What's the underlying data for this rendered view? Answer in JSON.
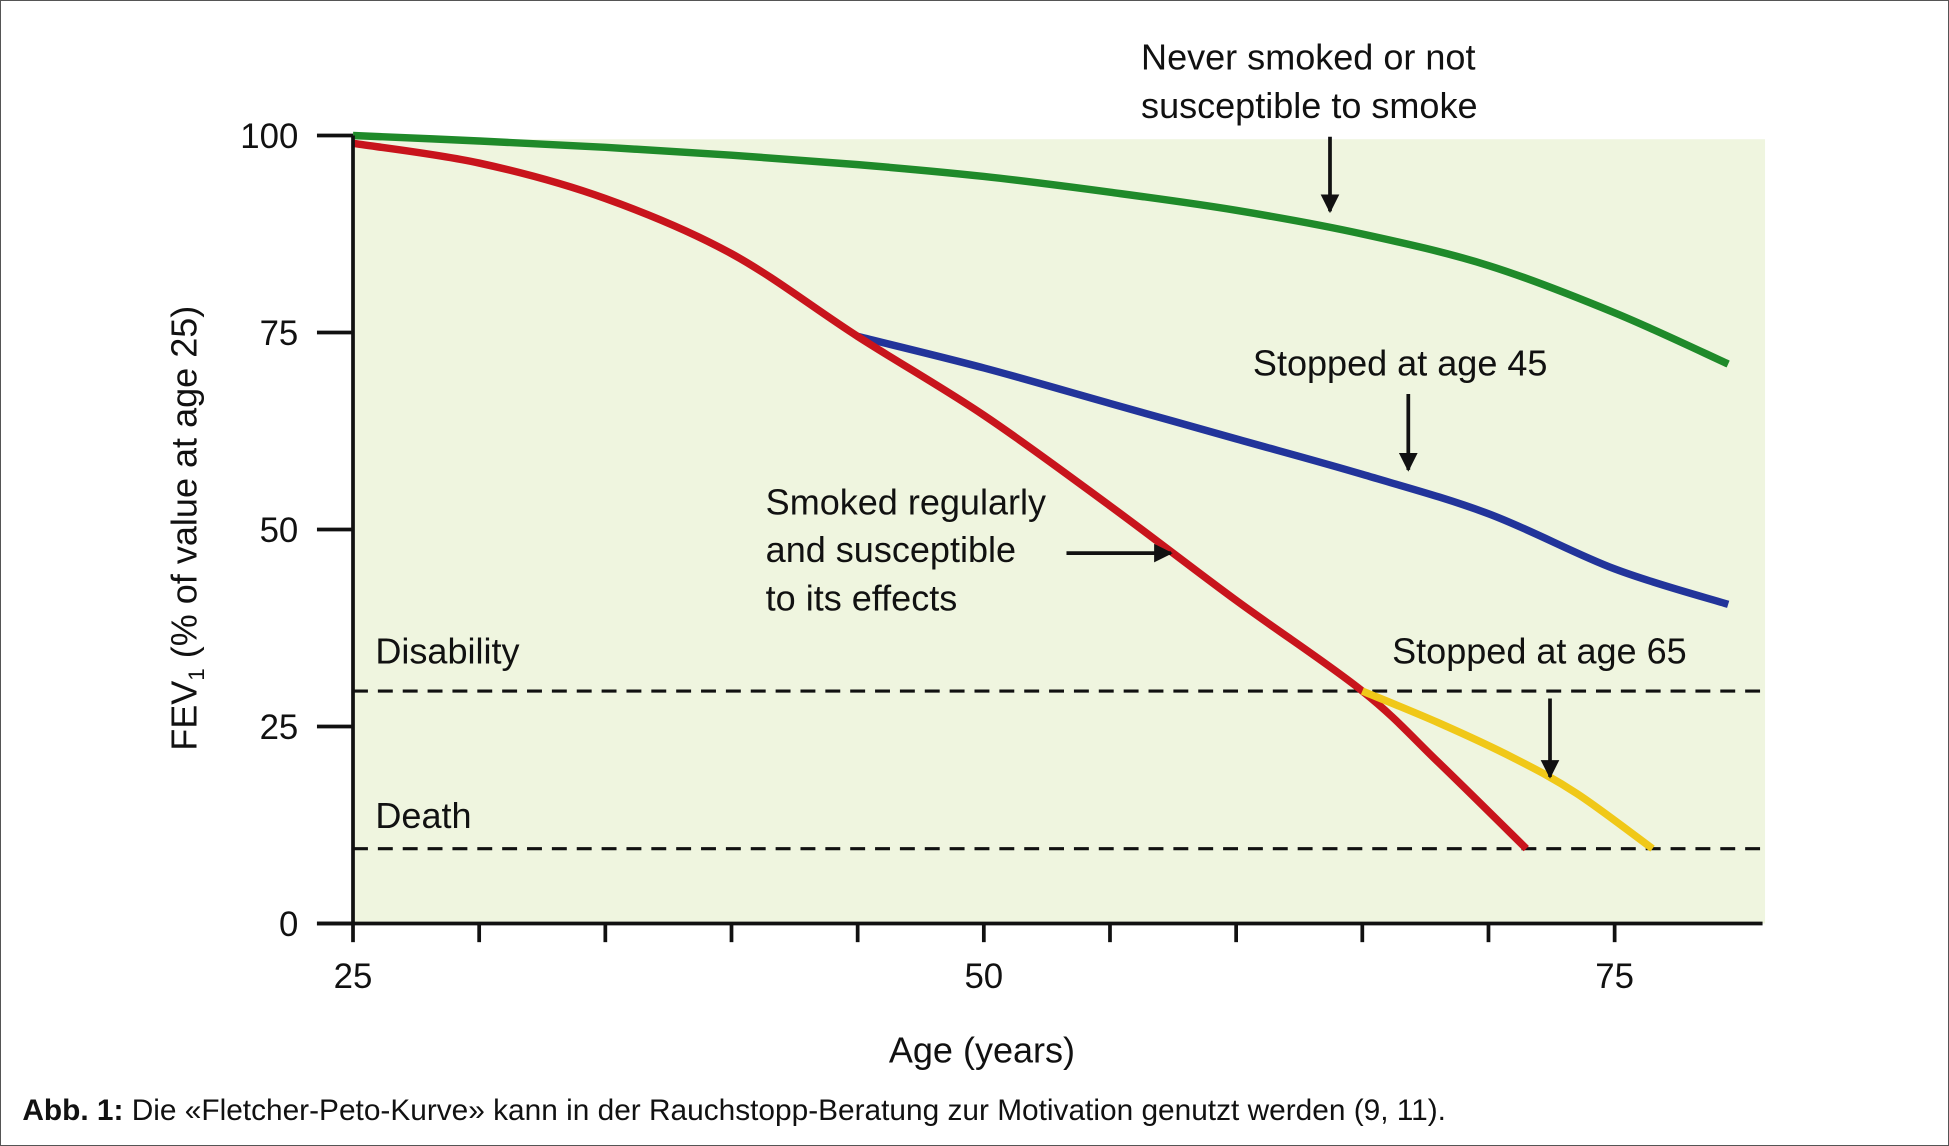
{
  "chart_data": {
    "type": "line",
    "title": "",
    "xlabel": "Age (years)",
    "ylabel_main": "FEV",
    "ylabel_sub": "1",
    "ylabel_rest": " (% of value at age 25)",
    "xlim": [
      25,
      81
    ],
    "ylim": [
      0,
      100
    ],
    "xticks": [
      25,
      30,
      35,
      40,
      45,
      50,
      55,
      60,
      65,
      70,
      75
    ],
    "xtick_labels": {
      "25": "25",
      "50": "50",
      "75": "75"
    },
    "yticks": [
      0,
      25,
      50,
      75,
      100
    ],
    "ytick_labels": [
      "0",
      "25",
      "50",
      "75",
      "100"
    ],
    "series": [
      {
        "name": "Never smoked or not susceptible to smoke",
        "color": "#1f8a2a",
        "x": [
          25,
          30,
          35,
          40,
          45,
          50,
          55,
          60,
          65,
          70,
          75,
          79.5
        ],
        "y": [
          100,
          99.3,
          98.5,
          97.5,
          96.3,
          94.8,
          92.8,
          90.5,
          87.5,
          83.5,
          77.5,
          71
        ]
      },
      {
        "name": "Smoked regularly and susceptible to its effects",
        "color": "#c8141c",
        "x": [
          25,
          30,
          35,
          40,
          45,
          50,
          55,
          60,
          65,
          68,
          71.5
        ],
        "y": [
          99,
          96.5,
          92,
          85,
          74.5,
          64.5,
          53,
          41,
          29.5,
          20.5,
          9.5
        ]
      },
      {
        "name": "Stopped at age 45",
        "color": "#22349a",
        "x": [
          45,
          50,
          55,
          60,
          65,
          70,
          75,
          79.5
        ],
        "y": [
          74.5,
          70.5,
          66,
          61.5,
          57,
          52,
          45,
          40.5
        ]
      },
      {
        "name": "Stopped at age 65",
        "color": "#f0c818",
        "x": [
          65,
          68,
          71,
          73.5,
          76.5
        ],
        "y": [
          29.5,
          25.5,
          21,
          16.5,
          9.5
        ]
      }
    ],
    "thresholds": [
      {
        "name": "Disability",
        "y": 29.5
      },
      {
        "name": "Death",
        "y": 9.5
      }
    ],
    "annotations": {
      "never_smoked": [
        "Never smoked or not",
        "susceptible to smoke"
      ],
      "stopped45": "Stopped at age 45",
      "smoked": [
        "Smoked regularly",
        "and susceptible",
        "to its effects"
      ],
      "stopped65": "Stopped at age 65",
      "disability": "Disability",
      "death": "Death"
    },
    "colors": {
      "plot_bg": "#eff5df"
    }
  },
  "caption": {
    "label": "Abb. 1:",
    "text": " Die «Fletcher-Peto-Kurve» kann in der Rauchstopp-Beratung zur Motivation genutzt werden (9, 11)."
  }
}
